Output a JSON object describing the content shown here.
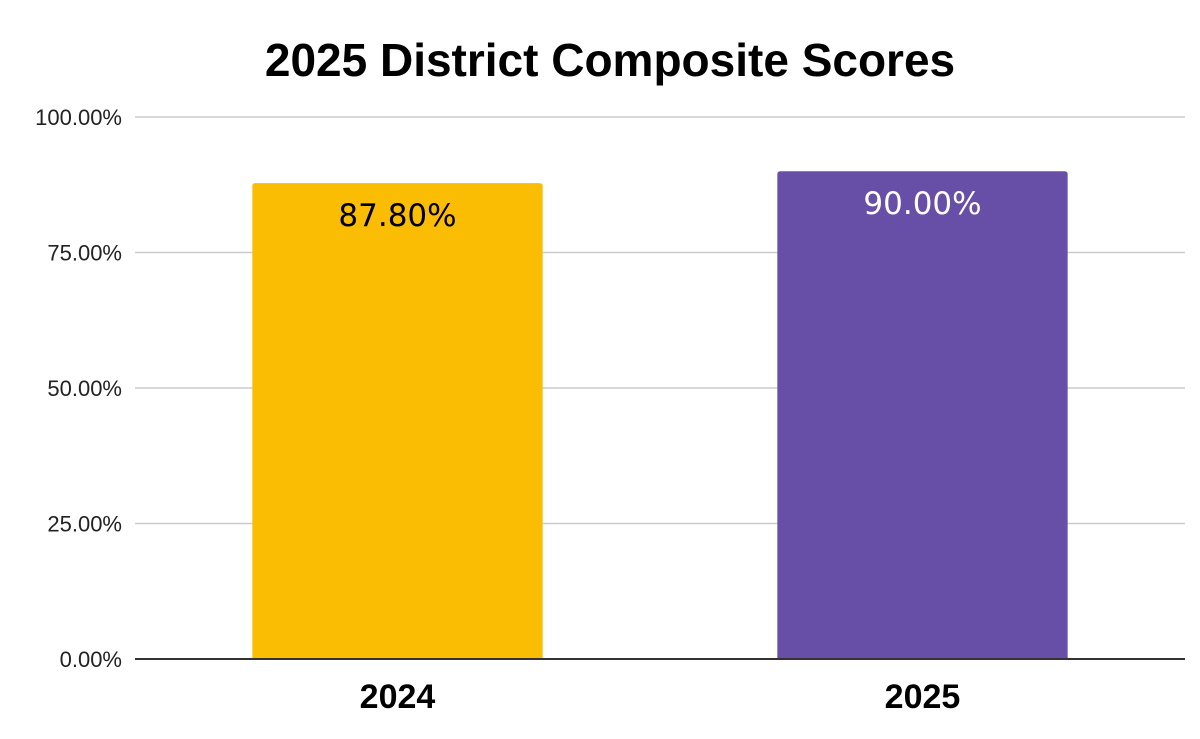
{
  "chart_data": {
    "type": "bar",
    "title": "2025 District Composite Scores",
    "xlabel": "",
    "ylabel": "",
    "categories": [
      "2024",
      "2025"
    ],
    "values": [
      87.8,
      90.0
    ],
    "data_labels": [
      "87.80%",
      "90.00%"
    ],
    "bar_colors": [
      "#FBBC04",
      "#674EA7"
    ],
    "label_colors": [
      "#000000",
      "#FFFFFF"
    ],
    "ylim": [
      0,
      100
    ],
    "yticks": [
      0,
      25,
      50,
      75,
      100
    ],
    "ytick_labels": [
      "0.00%",
      "25.00%",
      "50.00%",
      "75.00%",
      "100.00%"
    ],
    "grid": true,
    "legend": "none"
  }
}
